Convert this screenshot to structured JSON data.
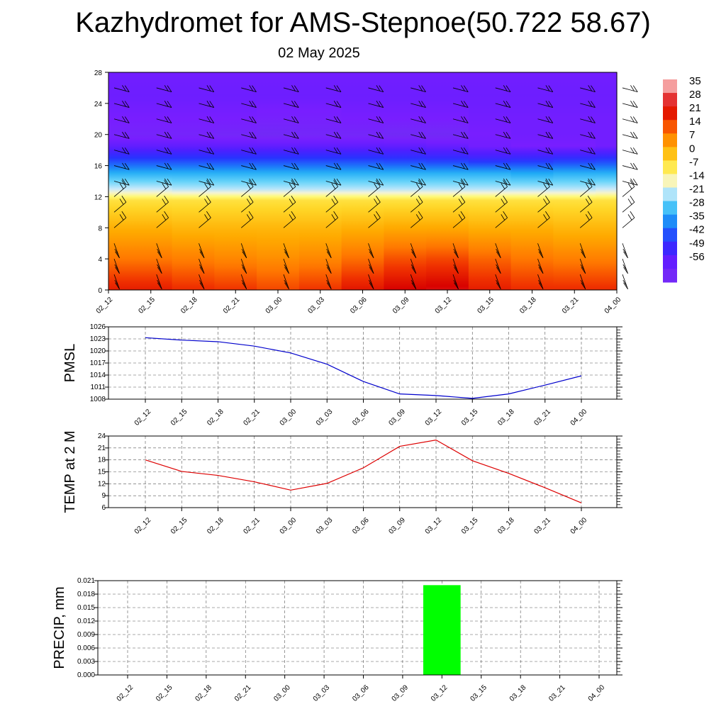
{
  "title": "Kazhydromet for AMS-Stepnoe(50.722 58.67)",
  "subtitle": "02 May 2025",
  "colors": {
    "pmsl_line": "#0000cc",
    "temp_line": "#dd0000",
    "precip_bar": "#00ff00"
  },
  "chart_data": [
    {
      "type": "heatmap",
      "title": "",
      "x": [
        "02_12",
        "02_15",
        "02_18",
        "02_21",
        "03_00",
        "03_03",
        "03_06",
        "03_09",
        "03_12",
        "03_15",
        "03_18",
        "03_21",
        "04_00"
      ],
      "y_ticks": [
        0,
        4,
        8,
        12,
        16,
        20,
        24,
        28
      ],
      "ylim": [
        0,
        28
      ],
      "colorbar": {
        "labels": [
          "35",
          "28",
          "21",
          "14",
          "7",
          "0",
          "-7",
          "-14",
          "-21",
          "-28",
          "-35",
          "-42",
          "-49",
          "-56"
        ],
        "range": [
          -63,
          42
        ]
      },
      "temperature_profile": [
        {
          "level": 0,
          "values": [
            24,
            24,
            22,
            21,
            19,
            21,
            25,
            28,
            29,
            24,
            22,
            22,
            22
          ]
        },
        {
          "level": 4,
          "values": [
            14,
            14,
            13,
            12,
            11,
            12,
            15,
            18,
            19,
            16,
            14,
            13,
            13
          ]
        },
        {
          "level": 8,
          "values": [
            6,
            6,
            5,
            5,
            5,
            5,
            6,
            7,
            7,
            6,
            6,
            5,
            5
          ]
        },
        {
          "level": 11.5,
          "values": [
            -2,
            -2,
            -2,
            -2,
            -2,
            -2,
            -2,
            -2,
            -2,
            -2,
            -2,
            -2,
            -2
          ]
        },
        {
          "level": 13,
          "values": [
            -16,
            -16,
            -17,
            -17,
            -17,
            -17,
            -17,
            -17,
            -17,
            -17,
            -17,
            -17,
            -16
          ]
        },
        {
          "level": 15,
          "values": [
            -27,
            -27,
            -27,
            -27,
            -27,
            -27,
            -27,
            -27,
            -27,
            -27,
            -28,
            -27,
            -27
          ]
        },
        {
          "level": 17,
          "values": [
            -42,
            -42,
            -42,
            -42,
            -42,
            -42,
            -42,
            -43,
            -44,
            -46,
            -45,
            -44,
            -43
          ]
        },
        {
          "level": 18.5,
          "values": [
            -52,
            -52,
            -52,
            -52,
            -52,
            -52,
            -52,
            -52,
            -53,
            -55,
            -56,
            -56,
            -55
          ]
        },
        {
          "level": 20,
          "values": [
            -58,
            -58,
            -58,
            -59,
            -60,
            -59,
            -59,
            -60,
            -60,
            -56,
            -55,
            -55,
            -55
          ]
        },
        {
          "level": 22,
          "values": [
            -56,
            -56,
            -56,
            -56,
            -57,
            -57,
            -56,
            -56,
            -56,
            -55,
            -55,
            -55,
            -55
          ]
        },
        {
          "level": 25,
          "values": [
            -54,
            -54,
            -54,
            -54,
            -54,
            -54,
            -54,
            -54,
            -54,
            -54,
            -54,
            -54,
            -54
          ]
        },
        {
          "level": 28,
          "values": [
            -55,
            -55,
            -55,
            -55,
            -55,
            -55,
            -55,
            -55,
            -55,
            -55,
            -55,
            -55,
            -55
          ]
        }
      ],
      "wind_barb_levels": [
        0,
        2,
        4,
        6,
        8,
        10,
        12,
        14,
        16,
        18,
        20,
        22,
        24,
        26,
        28
      ]
    },
    {
      "type": "line",
      "ylabel": "PMSL",
      "x": [
        "02_12",
        "02_15",
        "02_18",
        "02_21",
        "03_00",
        "03_03",
        "03_06",
        "03_09",
        "03_12",
        "03_15",
        "03_18",
        "03_21",
        "04_00"
      ],
      "values": [
        1023.3,
        1022.7,
        1022.3,
        1021.2,
        1019.5,
        1016.7,
        1012.4,
        1009.3,
        1008.9,
        1008.2,
        1009.3,
        1011.5,
        1013.8
      ],
      "y_ticks": [
        "1008",
        "1011",
        "1014",
        "1017",
        "1020",
        "1023",
        "1026"
      ],
      "ylim": [
        1008,
        1026
      ],
      "grid": true
    },
    {
      "type": "line",
      "ylabel": "TEMP at 2 M",
      "x": [
        "02_12",
        "02_15",
        "02_18",
        "02_21",
        "03_00",
        "03_03",
        "03_06",
        "03_09",
        "03_12",
        "03_15",
        "03_18",
        "03_21",
        "04_00"
      ],
      "values": [
        18.0,
        15.1,
        14.1,
        12.5,
        10.4,
        12.1,
        16.0,
        21.4,
        23.0,
        17.8,
        14.6,
        11.0,
        7.2
      ],
      "y_ticks": [
        "6",
        "9",
        "12",
        "15",
        "18",
        "21",
        "24"
      ],
      "ylim": [
        6,
        24
      ],
      "grid": true
    },
    {
      "type": "bar",
      "ylabel": "PRECIP, mm",
      "categories": [
        "02_12",
        "02_15",
        "02_18",
        "02_21",
        "03_00",
        "03_03",
        "03_06",
        "03_09",
        "03_12",
        "03_15",
        "03_18",
        "03_21",
        "04_00"
      ],
      "values": [
        0,
        0,
        0,
        0,
        0,
        0,
        0,
        0,
        0.02,
        0,
        0,
        0,
        0
      ],
      "y_ticks": [
        "0.000",
        "0.003",
        "0.006",
        "0.009",
        "0.012",
        "0.015",
        "0.018",
        "0.021"
      ],
      "ylim": [
        0,
        0.021
      ],
      "grid": true
    }
  ]
}
